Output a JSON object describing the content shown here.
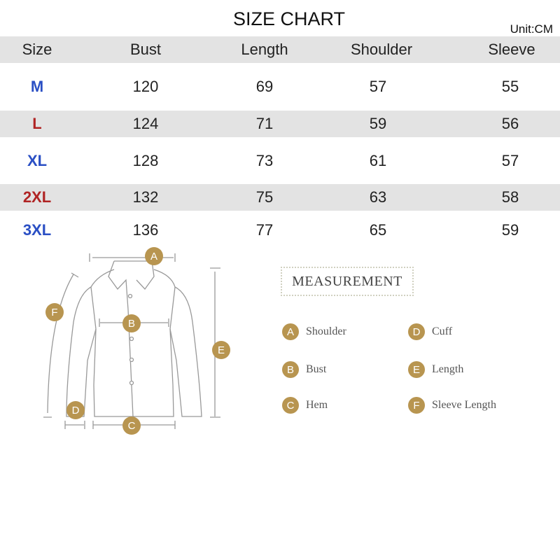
{
  "title": "SIZE CHART",
  "unit": "Unit:CM",
  "headers": [
    "Size",
    "Bust",
    "Length",
    "Shoulder",
    "Sleeve"
  ],
  "rows": [
    {
      "size": "M",
      "color": "#2a4fc4",
      "values": [
        "120",
        "69",
        "57",
        "55"
      ]
    },
    {
      "size": "L",
      "color": "#b02424",
      "values": [
        "124",
        "71",
        "59",
        "56"
      ]
    },
    {
      "size": "XL",
      "color": "#2a4fc4",
      "values": [
        "128",
        "73",
        "61",
        "57"
      ]
    },
    {
      "size": "2XL",
      "color": "#b02424",
      "values": [
        "132",
        "75",
        "63",
        "58"
      ]
    },
    {
      "size": "3XL",
      "color": "#2a4fc4",
      "values": [
        "136",
        "77",
        "65",
        "59"
      ]
    }
  ],
  "measurement_title": "MEASUREMENT",
  "legend": [
    {
      "letter": "A",
      "label": "Shoulder"
    },
    {
      "letter": "B",
      "label": "Bust"
    },
    {
      "letter": "C",
      "label": "Hem"
    },
    {
      "letter": "D",
      "label": "Cuff"
    },
    {
      "letter": "E",
      "label": "Length"
    },
    {
      "letter": "F",
      "label": "Sleeve Length"
    }
  ],
  "accent": "#b89550"
}
